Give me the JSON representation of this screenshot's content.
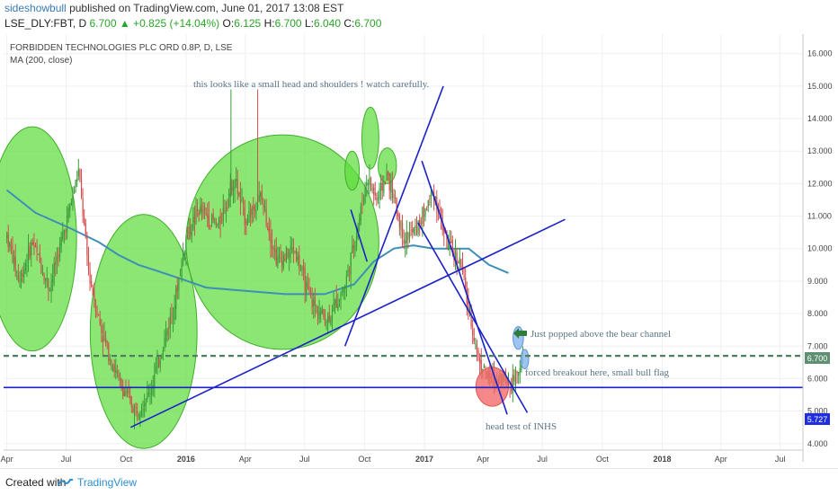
{
  "header": {
    "username": "sideshowbull",
    "published_text": "published on TradingView.com, June 01, 2017 13:08 EST",
    "symbol": "LSE_DLY:FBT, D",
    "last": "6.700",
    "change": "+0.825 (+14.04%)",
    "ohlc": {
      "O": "6.125",
      "H": "6.700",
      "L": "6.040",
      "C": "6.700"
    }
  },
  "chart_data": {
    "type": "candlestick",
    "title": "FORBIDDEN TECHNOLOGIES PLC ORD 0.8P, D, LSE",
    "indicator": "MA (200, close)",
    "x_tick_labels": [
      "Apr",
      "Jul",
      "Oct",
      "2016",
      "Apr",
      "Jul",
      "Oct",
      "2017",
      "Apr",
      "Jul",
      "Oct",
      "2018",
      "Apr",
      "Jul"
    ],
    "y_tick_labels": [
      "4.000",
      "5.000",
      "6.000",
      "7.000",
      "8.000",
      "9.000",
      "10.000",
      "11.000",
      "12.000",
      "13.000",
      "14.000",
      "15.000",
      "16.000"
    ],
    "ylim": [
      3.8,
      16.6
    ],
    "xlim": [
      "2015-03-27",
      "2018-08-05"
    ],
    "price_labels": {
      "last": "6.700",
      "support": "5.727"
    },
    "price_levels": {
      "last_close": 6.7,
      "support_line": 5.727
    },
    "price_path": [
      [
        "2015-04-01",
        10.4
      ],
      [
        "2015-04-20",
        9.0
      ],
      [
        "2015-05-10",
        10.2
      ],
      [
        "2015-06-05",
        8.8
      ],
      [
        "2015-07-01",
        10.8
      ],
      [
        "2015-07-20",
        12.4
      ],
      [
        "2015-08-05",
        9.2
      ],
      [
        "2015-08-25",
        7.4
      ],
      [
        "2015-09-20",
        5.9
      ],
      [
        "2015-10-15",
        5.0
      ],
      [
        "2015-11-05",
        5.5
      ],
      [
        "2015-11-25",
        6.9
      ],
      [
        "2015-12-15",
        8.4
      ],
      [
        "2016-01-01",
        10.3
      ],
      [
        "2016-01-20",
        11.2
      ],
      [
        "2016-02-20",
        10.7
      ],
      [
        "2016-03-15",
        12.2
      ],
      [
        "2016-04-01",
        10.9
      ],
      [
        "2016-04-25",
        11.6
      ],
      [
        "2016-05-20",
        9.6
      ],
      [
        "2016-06-15",
        10.0
      ],
      [
        "2016-07-10",
        8.4
      ],
      [
        "2016-08-05",
        7.8
      ],
      [
        "2016-09-01",
        8.9
      ],
      [
        "2016-09-20",
        10.6
      ],
      [
        "2016-10-05",
        12.2
      ],
      [
        "2016-10-20",
        11.5
      ],
      [
        "2016-11-05",
        12.3
      ],
      [
        "2016-12-01",
        10.3
      ],
      [
        "2016-12-20",
        10.6
      ],
      [
        "2017-01-15",
        11.8
      ],
      [
        "2017-02-05",
        10.1
      ],
      [
        "2017-02-25",
        9.6
      ],
      [
        "2017-03-10",
        8.1
      ],
      [
        "2017-03-25",
        6.6
      ],
      [
        "2017-04-10",
        6.0
      ],
      [
        "2017-04-20",
        5.95
      ],
      [
        "2017-04-30",
        6.1
      ],
      [
        "2017-05-15",
        5.85
      ],
      [
        "2017-05-25",
        6.3
      ],
      [
        "2017-06-01",
        6.7
      ]
    ],
    "ma200_path": [
      [
        "2015-04-01",
        11.8
      ],
      [
        "2015-05-15",
        11.1
      ],
      [
        "2015-07-10",
        10.6
      ],
      [
        "2015-08-20",
        10.2
      ],
      [
        "2015-09-20",
        9.8
      ],
      [
        "2015-10-20",
        9.5
      ],
      [
        "2015-11-20",
        9.3
      ],
      [
        "2015-12-20",
        9.1
      ],
      [
        "2016-02-01",
        8.8
      ],
      [
        "2016-04-01",
        8.7
      ],
      [
        "2016-06-01",
        8.6
      ],
      [
        "2016-08-01",
        8.6
      ],
      [
        "2016-09-15",
        8.9
      ],
      [
        "2016-10-15",
        9.6
      ],
      [
        "2016-11-15",
        10.0
      ],
      [
        "2016-12-15",
        10.1
      ],
      [
        "2017-01-15",
        10.0
      ],
      [
        "2017-02-15",
        10.0
      ],
      [
        "2017-03-10",
        10.0
      ],
      [
        "2017-04-10",
        9.5
      ],
      [
        "2017-05-10",
        9.25
      ]
    ],
    "annotations": {
      "hs_note": "this looks like a small head and shoulders ! watch carefully.",
      "popped_note": "Just popped above the bear channel",
      "breakout_note": "forced breakout here, small bull flag",
      "head_note": "head test of INHS"
    },
    "trendlines": [
      {
        "name": "long-uptrend",
        "from": [
          "2015-10-08",
          4.5
        ],
        "to": [
          "2017-08-05",
          10.9
        ]
      },
      {
        "name": "steep-uptrend",
        "from": [
          "2016-09-01",
          7.0
        ],
        "to": [
          "2017-01-30",
          15.0
        ]
      },
      {
        "name": "neckline-steep",
        "from": [
          "2016-09-10",
          11.2
        ],
        "to": [
          "2016-10-05",
          9.6
        ]
      },
      {
        "name": "bear-channel-upper",
        "from": [
          "2016-12-28",
          12.7
        ],
        "to": [
          "2017-05-08",
          4.9
        ]
      },
      {
        "name": "bear-channel-lower",
        "from": [
          "2016-12-22",
          10.8
        ],
        "to": [
          "2017-06-08",
          4.95
        ]
      }
    ],
    "ellipses": [
      {
        "name": "green-1",
        "cx": [
          "2015-05-10",
          10.3
        ],
        "rx_days": 68,
        "ry": 3.45,
        "color": "green"
      },
      {
        "name": "green-2",
        "cx": [
          "2015-10-28",
          7.45
        ],
        "rx_days": 82,
        "ry": 3.6,
        "color": "green"
      },
      {
        "name": "green-3",
        "cx": [
          "2016-05-28",
          10.2
        ],
        "rx_days": 148,
        "ry": 3.3,
        "color": "green"
      },
      {
        "name": "green-4",
        "cx": [
          "2016-09-12",
          12.4
        ],
        "rx_days": 11,
        "ry": 0.6,
        "color": "green"
      },
      {
        "name": "green-5",
        "cx": [
          "2016-10-10",
          13.4
        ],
        "rx_days": 13,
        "ry": 0.95,
        "color": "green"
      },
      {
        "name": "green-6",
        "cx": [
          "2016-11-05",
          12.55
        ],
        "rx_days": 14,
        "ry": 0.55,
        "color": "green"
      },
      {
        "name": "red-head",
        "cx": [
          "2017-04-15",
          5.75
        ],
        "rx_days": 25,
        "ry": 0.6,
        "color": "red"
      },
      {
        "name": "blue-1",
        "cx": [
          "2017-05-25",
          7.25
        ],
        "rx_days": 8,
        "ry": 0.35,
        "color": "blue"
      },
      {
        "name": "blue-2",
        "cx": [
          "2017-06-04",
          6.6
        ],
        "rx_days": 6,
        "ry": 0.3,
        "color": "blue"
      }
    ]
  },
  "colors": {
    "price_up": "#3a9b3a",
    "price_down": "#d24d4d",
    "ma": "#3e8fb5",
    "trend": "#1a22c8",
    "ellipse_green": "#5fdc3e",
    "ellipse_red": "#f26a6a",
    "ellipse_blue": "#86b6ee",
    "annotation_text": "#5b7487",
    "arrow": "#2f7d3c",
    "last_line": "#4d8060",
    "support_label_bg": "#1f2ee0"
  },
  "footer": {
    "created_with": "Created with",
    "brand": "TradingView"
  }
}
